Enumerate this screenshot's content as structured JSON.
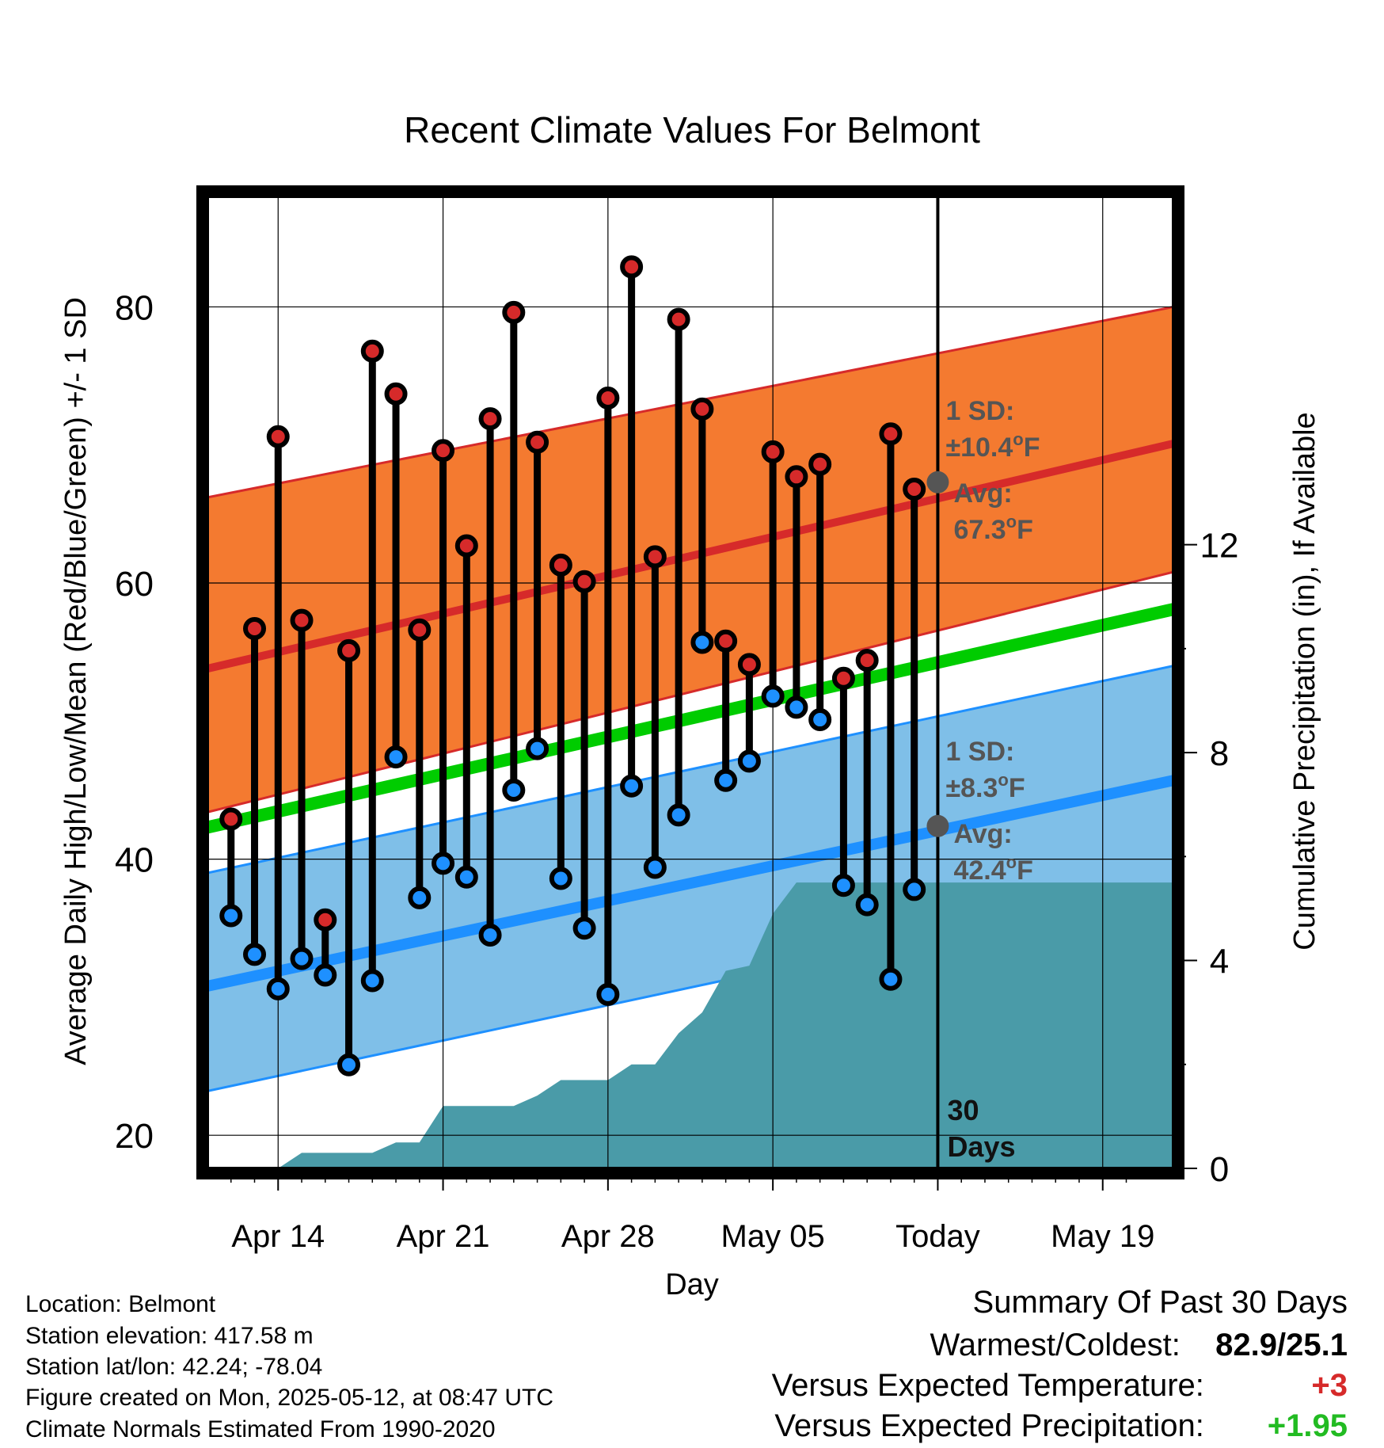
{
  "chart_data": {
    "type": "line",
    "title": "Recent Climate Values For Belmont",
    "xlabel": "Day",
    "ylabel": "Average Daily High/Low/Mean (Red/Blue/Green) +/- 1 SD",
    "y2label": "Cumulative Precipitation (in), If Available",
    "ylim": [
      17.6,
      88
    ],
    "y2lim": [
      0,
      18.7
    ],
    "yticks": [
      20,
      40,
      60,
      80
    ],
    "y2ticks": [
      0,
      4,
      8,
      12
    ],
    "xticks": [
      "Apr 14",
      "Apr 21",
      "Apr 28",
      "May 05",
      "Today",
      "May 19"
    ],
    "x_range_days": [
      "Apr 11",
      "May 22"
    ],
    "today": "May 12",
    "window_label": [
      "30",
      "Days"
    ],
    "normals": {
      "high_avg": {
        "start": 53.8,
        "end": 70.1,
        "color": "#d62a2a"
      },
      "high_band": {
        "lower_start": 43.4,
        "lower_end": 60.8,
        "upper_start": 66.2,
        "upper_end": 80.0,
        "color": "#f47a30"
      },
      "mean_avg": {
        "start": 42.3,
        "end": 58.1,
        "color": "#00cc00"
      },
      "low_avg": {
        "start": 30.8,
        "end": 45.7,
        "color": "#1e90ff"
      },
      "low_band": {
        "lower_start": 23.2,
        "lower_end": 38.2,
        "upper_start": 39.0,
        "upper_end": 54.0,
        "color": "#7fbfe8"
      }
    },
    "annotations": {
      "high": {
        "sd_title": "1 SD:",
        "sd_value": "±10.4",
        "avg_title": "Avg:",
        "avg_value": "67.3",
        "unit": "F",
        "degree": "o",
        "point": 67.3
      },
      "low": {
        "sd_title": "1 SD:",
        "sd_value": "±8.3",
        "avg_title": "Avg:",
        "avg_value": "42.4",
        "unit": "F",
        "degree": "o",
        "point": 42.4
      }
    },
    "series": [
      {
        "name": "Daily High",
        "color": "#d62a2a",
        "values": [
          42.9,
          56.7,
          70.6,
          57.3,
          35.6,
          55.1,
          76.8,
          73.7,
          56.6,
          69.6,
          62.7,
          71.9,
          79.6,
          70.2,
          61.3,
          60.1,
          73.4,
          82.9,
          61.9,
          79.1,
          72.6,
          55.8,
          54.1,
          69.5,
          67.7,
          68.6,
          53.1,
          54.4,
          70.8,
          66.8
        ]
      },
      {
        "name": "Daily Low",
        "color": "#1e90ff",
        "values": [
          35.9,
          33.1,
          30.6,
          32.8,
          31.6,
          25.1,
          31.2,
          47.4,
          37.2,
          39.7,
          38.7,
          34.5,
          45.0,
          48.0,
          38.6,
          35.0,
          30.2,
          45.3,
          39.4,
          43.2,
          55.7,
          45.7,
          47.1,
          51.8,
          51.0,
          50.1,
          38.1,
          36.7,
          31.3,
          37.8
        ]
      },
      {
        "name": "Cumulative Precipitation",
        "color": "#4a9ba8",
        "x": [
          "Apr 11",
          "Apr 14",
          "Apr 15",
          "Apr 17",
          "Apr 18",
          "Apr 19",
          "Apr 20",
          "Apr 21",
          "Apr 22",
          "Apr 24",
          "Apr 25",
          "Apr 26",
          "Apr 27",
          "Apr 28",
          "Apr 29",
          "Apr 30",
          "May 01",
          "May 02",
          "May 03",
          "May 04",
          "May 05",
          "May 06",
          "May 22"
        ],
        "values": [
          0,
          0,
          0.3,
          0.3,
          0.3,
          0.5,
          0.5,
          1.2,
          1.2,
          1.2,
          1.4,
          1.7,
          1.7,
          1.7,
          2.0,
          2.0,
          2.6,
          3.0,
          3.8,
          3.9,
          4.9,
          5.5,
          5.5
        ]
      }
    ]
  },
  "footer": {
    "location": "Location: Belmont",
    "elevation": "Station elevation: 417.58 m",
    "latlon": "Station lat/lon: 42.24; -78.04",
    "created": "Figure created on Mon, 2025-05-12, at 08:47 UTC",
    "normals": "Climate Normals Estimated From 1990-2020"
  },
  "summary": {
    "title": "Summary Of Past 30 Days",
    "warmest_label": "Warmest/Coldest:",
    "warmest_value": "82.9/25.1",
    "temp_label": "Versus Expected Temperature:",
    "temp_value": "+3",
    "temp_color": "#d62a2a",
    "precip_label": "Versus Expected Precipitation:",
    "precip_value": "+1.95",
    "precip_color": "#22bb22"
  }
}
